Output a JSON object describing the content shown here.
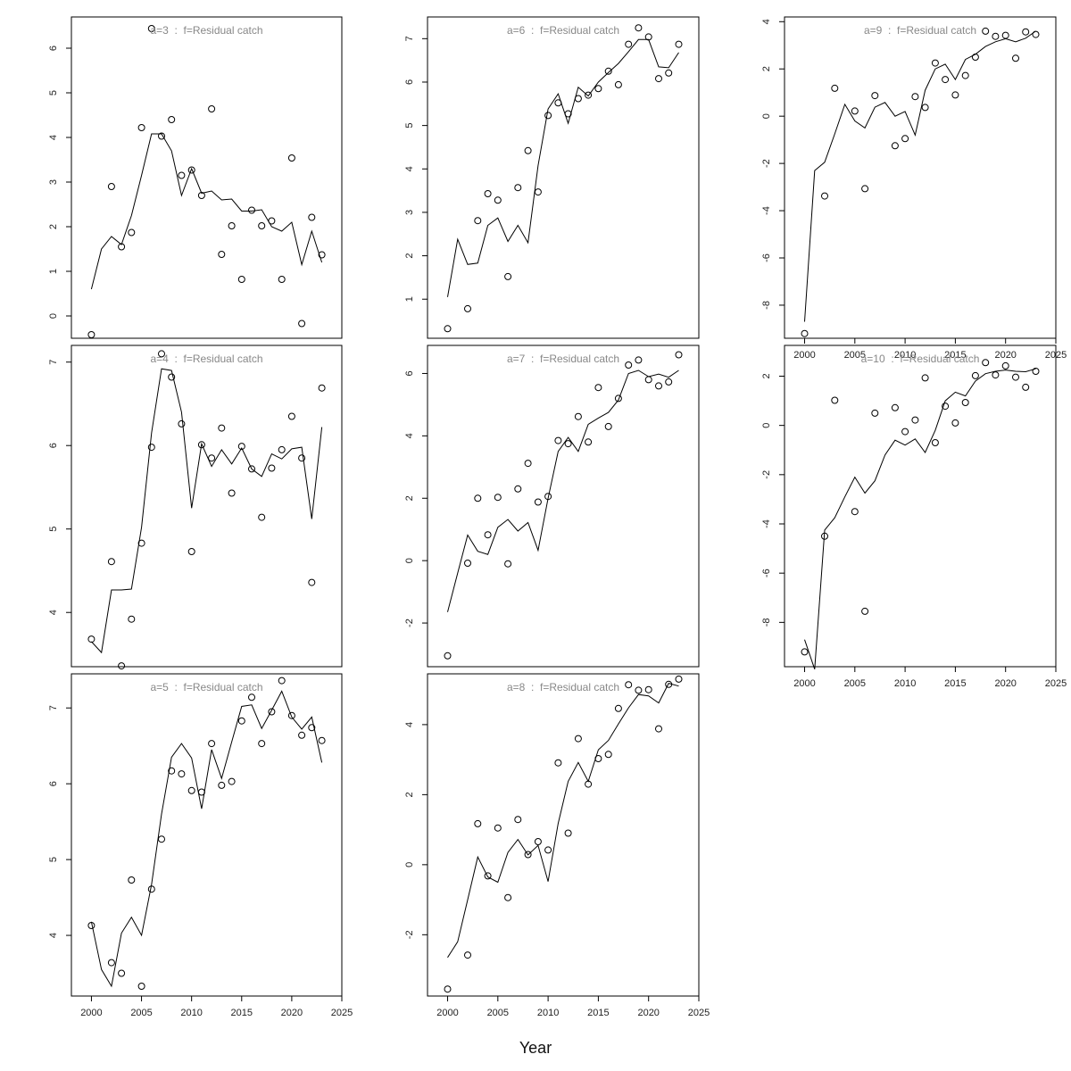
{
  "chart_data": {
    "type": "line",
    "xlabel": "Year",
    "x": [
      2000,
      2001,
      2002,
      2003,
      2004,
      2005,
      2006,
      2007,
      2008,
      2009,
      2010,
      2011,
      2012,
      2013,
      2014,
      2015,
      2016,
      2017,
      2018,
      2019,
      2020,
      2021,
      2022,
      2023
    ],
    "x_ticks": [
      2000,
      2005,
      2010,
      2015,
      2020,
      2025
    ],
    "point_style": "open-circle",
    "line_style": "solid",
    "colors": {
      "line": "#000000",
      "points": "#000000",
      "panel_title": "#888888",
      "axis": "#000000"
    },
    "panels": [
      {
        "title": "a=3  :  f=Residual catch",
        "ylim": [
          -0.5,
          6.7
        ],
        "y_ticks": [
          0,
          1,
          2,
          3,
          4,
          5,
          6
        ],
        "fitted": [
          0.6,
          1.5,
          1.78,
          1.6,
          2.25,
          3.15,
          4.08,
          4.08,
          3.7,
          2.7,
          3.3,
          2.75,
          2.8,
          2.6,
          2.62,
          2.35,
          2.35,
          2.38,
          2.0,
          1.9,
          2.1,
          1.15,
          1.9,
          1.2
        ],
        "observed": [
          -0.42,
          null,
          2.9,
          1.55,
          1.87,
          4.22,
          6.44,
          4.03,
          4.4,
          3.15,
          3.27,
          2.7,
          4.64,
          1.38,
          2.02,
          0.82,
          2.37,
          2.02,
          2.13,
          0.82,
          3.54,
          -0.17,
          2.21,
          1.37
        ]
      },
      {
        "title": "a=4  :  f=Residual catch",
        "ylim": [
          3.35,
          7.2
        ],
        "y_ticks": [
          4,
          5,
          6,
          7
        ],
        "fitted": [
          3.65,
          3.52,
          4.27,
          4.27,
          4.28,
          5.02,
          6.15,
          6.92,
          6.9,
          6.4,
          5.25,
          6.02,
          5.75,
          5.95,
          5.78,
          5.97,
          5.72,
          5.63,
          5.9,
          5.84,
          5.96,
          5.98,
          5.12,
          6.22
        ],
        "observed": [
          3.68,
          null,
          4.61,
          3.36,
          3.92,
          4.83,
          5.98,
          7.1,
          6.82,
          6.26,
          4.73,
          6.01,
          5.85,
          6.21,
          5.43,
          5.99,
          5.72,
          5.14,
          5.73,
          5.95,
          6.35,
          5.85,
          4.36,
          6.69
        ]
      },
      {
        "title": "a=5  :  f=Residual catch",
        "ylim": [
          3.2,
          7.45
        ],
        "y_ticks": [
          4,
          5,
          6,
          7
        ],
        "fitted": [
          4.18,
          3.55,
          3.33,
          4.03,
          4.24,
          4.0,
          4.67,
          5.6,
          6.35,
          6.53,
          6.34,
          5.67,
          6.45,
          6.07,
          6.55,
          7.02,
          7.04,
          6.73,
          6.97,
          7.22,
          6.88,
          6.72,
          6.88,
          6.28
        ],
        "observed": [
          4.13,
          null,
          3.64,
          3.5,
          4.73,
          3.33,
          4.61,
          5.27,
          6.17,
          6.13,
          5.91,
          5.89,
          6.53,
          5.98,
          6.03,
          6.83,
          7.14,
          6.53,
          6.95,
          7.36,
          6.9,
          6.64,
          6.74,
          6.57
        ]
      },
      {
        "title": "a=6  :  f=Residual catch",
        "ylim": [
          0.1,
          7.5
        ],
        "y_ticks": [
          1,
          2,
          3,
          4,
          5,
          6,
          7
        ],
        "fitted": [
          1.05,
          2.38,
          1.8,
          1.83,
          2.7,
          2.87,
          2.33,
          2.7,
          2.3,
          4.08,
          5.38,
          5.73,
          5.05,
          5.88,
          5.68,
          6.0,
          6.22,
          6.43,
          6.7,
          6.98,
          6.98,
          6.35,
          6.33,
          6.68
        ],
        "observed": [
          0.32,
          null,
          0.78,
          2.81,
          3.43,
          3.28,
          1.52,
          3.57,
          4.42,
          3.47,
          5.23,
          5.52,
          5.27,
          5.62,
          5.7,
          5.85,
          6.25,
          5.94,
          6.87,
          7.25,
          7.04,
          6.08,
          6.21,
          6.87
        ]
      },
      {
        "title": "a=7  :  f=Residual catch",
        "ylim": [
          -3.4,
          6.9
        ],
        "y_ticks": [
          -2,
          0,
          2,
          4,
          6
        ],
        "fitted": [
          -1.65,
          -0.4,
          0.82,
          0.3,
          0.2,
          1.07,
          1.32,
          0.95,
          1.22,
          0.33,
          2.0,
          3.5,
          3.95,
          3.5,
          4.37,
          4.57,
          4.75,
          5.15,
          6.0,
          6.1,
          5.9,
          5.98,
          5.88,
          6.1
        ],
        "observed": [
          -3.05,
          null,
          -0.08,
          2.0,
          0.83,
          2.03,
          -0.1,
          2.3,
          3.12,
          1.88,
          2.06,
          3.85,
          3.75,
          4.62,
          3.8,
          5.55,
          4.3,
          5.2,
          6.27,
          6.43,
          5.8,
          5.6,
          5.73,
          6.6
        ]
      },
      {
        "title": "a=8  :  f=Residual catch",
        "ylim": [
          -3.75,
          5.45
        ],
        "y_ticks": [
          -2,
          0,
          2,
          4
        ],
        "fitted": [
          -2.65,
          -2.2,
          -1.0,
          0.22,
          -0.35,
          -0.5,
          0.35,
          0.72,
          0.28,
          0.55,
          -0.48,
          1.18,
          2.38,
          2.92,
          2.38,
          3.28,
          3.55,
          4.02,
          4.48,
          4.86,
          4.82,
          4.62,
          5.18,
          5.1
        ],
        "observed": [
          -3.55,
          null,
          -2.58,
          1.17,
          -0.32,
          1.05,
          -0.94,
          1.29,
          0.29,
          0.66,
          0.42,
          2.91,
          0.9,
          3.6,
          2.3,
          3.03,
          3.15,
          4.46,
          5.14,
          4.98,
          5.0,
          3.88,
          5.15,
          5.3
        ]
      },
      {
        "title": "a=9  :  f=Residual catch",
        "ylim": [
          -9.4,
          4.2
        ],
        "y_ticks": [
          -8,
          -6,
          -4,
          -2,
          0,
          2,
          4
        ],
        "fitted": [
          -8.7,
          -2.3,
          -1.95,
          -0.75,
          0.5,
          -0.2,
          -0.5,
          0.38,
          0.58,
          0.0,
          0.2,
          -0.8,
          1.1,
          2.0,
          2.2,
          1.55,
          2.4,
          2.62,
          2.95,
          3.15,
          3.28,
          3.15,
          3.3,
          3.6
        ],
        "observed": [
          -9.2,
          null,
          -3.38,
          1.18,
          null,
          0.22,
          -3.07,
          0.87,
          null,
          -1.25,
          -0.95,
          0.83,
          0.37,
          2.25,
          1.55,
          0.9,
          1.72,
          2.5,
          3.6,
          3.38,
          3.42,
          2.45,
          3.57,
          3.46
        ]
      },
      {
        "title": "a=10  :  f=Residual catch",
        "ylim": [
          -9.8,
          3.25
        ],
        "y_ticks": [
          -8,
          -6,
          -4,
          -2,
          0,
          2
        ],
        "fitted": [
          -8.7,
          -9.9,
          -4.25,
          -3.75,
          -2.9,
          -2.1,
          -2.75,
          -2.25,
          -1.2,
          -0.6,
          -0.8,
          -0.55,
          -1.1,
          -0.2,
          1.0,
          1.35,
          1.2,
          1.8,
          2.1,
          2.2,
          2.25,
          2.2,
          2.18,
          2.3
        ],
        "observed": [
          -9.2,
          null,
          -4.5,
          1.02,
          null,
          -3.5,
          -7.55,
          0.5,
          null,
          0.72,
          -0.25,
          0.22,
          1.93,
          -0.7,
          0.78,
          0.1,
          0.93,
          2.02,
          2.55,
          2.05,
          2.42,
          1.96,
          1.55,
          2.2
        ]
      }
    ]
  }
}
